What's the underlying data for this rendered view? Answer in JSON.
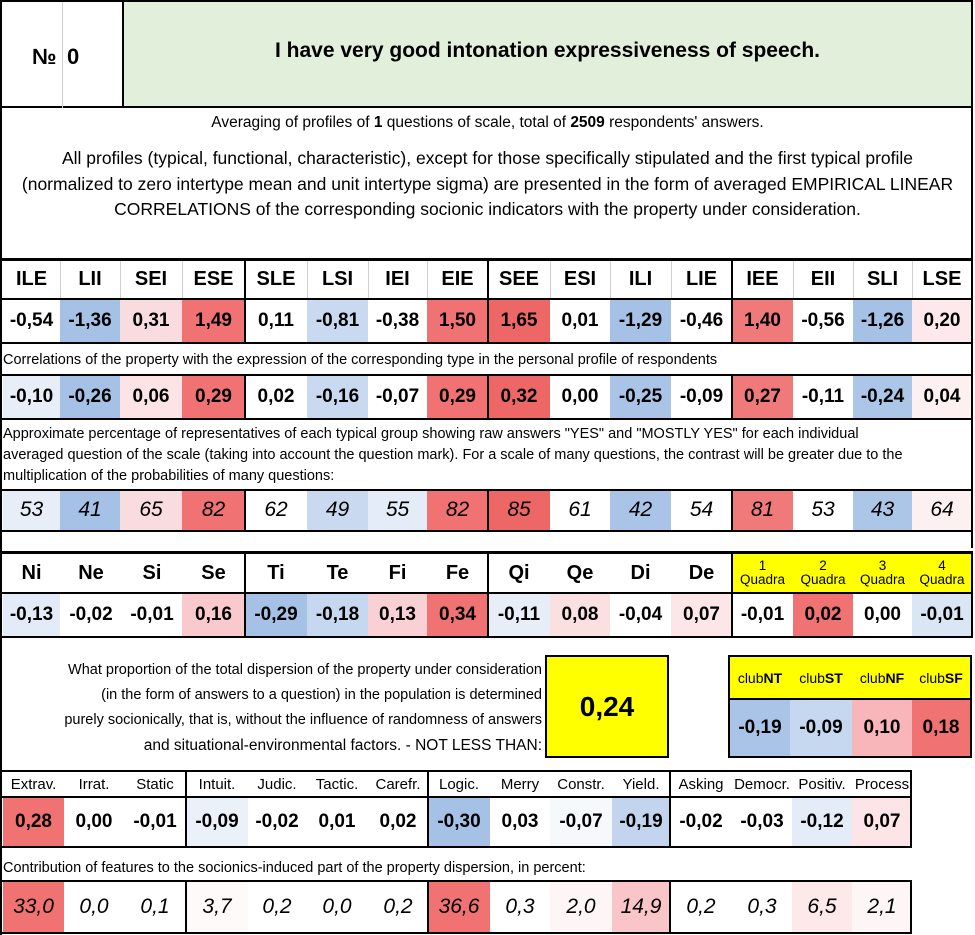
{
  "header": {
    "number_label": "№",
    "number_value": "0",
    "statement": "I have very good intonation expressiveness of speech."
  },
  "summary": {
    "part1": "Averaging of profiles of ",
    "num_questions": "1",
    "part2": " questions of scale, total of ",
    "num_answers": "2509",
    "part3": " respondents' answers."
  },
  "description": "All profiles (typical, functional, characteristic), except for those specifically stipulated and the first typical profile (normalized to zero intertype mean and unit intertype sigma) are presented in the form of averaged EMPIRICAL LINEAR CORRELATIONS of the corresponding socionic indicators with the property under consideration.",
  "types": {
    "headers": [
      "ILE",
      "LII",
      "SEI",
      "ESE",
      "SLE",
      "LSI",
      "IEI",
      "EIE",
      "SEE",
      "ESI",
      "ILI",
      "LIE",
      "IEE",
      "EII",
      "SLI",
      "LSE"
    ],
    "normalized": [
      "-0,54",
      "-1,36",
      "0,31",
      "1,49",
      "0,11",
      "-0,81",
      "-0,38",
      "1,50",
      "1,65",
      "0,01",
      "-1,29",
      "-0,46",
      "1,40",
      "-0,56",
      "-1,26",
      "0,20"
    ],
    "normalized_colors": [
      "#ffffff",
      "#a5c1e6",
      "#f9dcdf",
      "#f07272",
      "#ffffff",
      "#c9daf0",
      "#ffffff",
      "#f07272",
      "#ee6767",
      "#ffffff",
      "#a5c1e6",
      "#ffffff",
      "#f07a7a",
      "#ffffff",
      "#a5c1e6",
      "#fde9eb"
    ],
    "correlation_note": "Correlations of the property with the expression of the corresponding type in the personal profile of respondents",
    "correlations": [
      "-0,10",
      "-0,26",
      "0,06",
      "0,29",
      "0,02",
      "-0,16",
      "-0,07",
      "0,29",
      "0,32",
      "0,00",
      "-0,25",
      "-0,09",
      "0,27",
      "-0,11",
      "-0,24",
      "0,04"
    ],
    "correlation_colors": [
      "#e7eef8",
      "#a5c1e6",
      "#fce4e6",
      "#f07272",
      "#ffffff",
      "#c9daf0",
      "#ffffff",
      "#f07272",
      "#ee6767",
      "#ffffff",
      "#a9c4e7",
      "#ffffff",
      "#f07a7a",
      "#ffffff",
      "#acc6e8",
      "#fdf0f1"
    ],
    "percent_note_1": "Approximate percentage of representatives of each typical group showing raw answers \"YES\" and \"MOSTLY YES\" for each individual",
    "percent_note_2": "averaged question of the scale (taking into account the question mark). For a scale of many questions, the contrast will be greater due to the",
    "percent_note_3": "multiplication of the probabilities of many questions:",
    "percents": [
      "53",
      "41",
      "65",
      "82",
      "62",
      "49",
      "55",
      "82",
      "85",
      "61",
      "42",
      "54",
      "81",
      "53",
      "43",
      "64"
    ],
    "percent_colors": [
      "#e7eef8",
      "#a5c1e6",
      "#f9dcdf",
      "#f07272",
      "#ffffff",
      "#c9daf0",
      "#e4ecf7",
      "#f07272",
      "#ee6767",
      "#ffffff",
      "#a9c4e7",
      "#ffffff",
      "#f07a7a",
      "#ffffff",
      "#acc6e8",
      "#fdf0f1"
    ]
  },
  "functions": {
    "headers": [
      "Ni",
      "Ne",
      "Si",
      "Se",
      "Ti",
      "Te",
      "Fi",
      "Fe",
      "Qi",
      "Qe",
      "Di",
      "De"
    ],
    "values": [
      "-0,13",
      "-0,02",
      "-0,01",
      "0,16",
      "-0,29",
      "-0,18",
      "0,13",
      "0,34",
      "-0,11",
      "0,08",
      "-0,04",
      "0,07"
    ],
    "colors": [
      "#e2ebf7",
      "#ffffff",
      "#ffffff",
      "#f9c9cd",
      "#a5c1e6",
      "#c6d8ef",
      "#f9d1d4",
      "#f07272",
      "#e7eef8",
      "#fbe0e2",
      "#ffffff",
      "#fce6e8"
    ]
  },
  "quadras": {
    "numbers": [
      "1",
      "2",
      "3",
      "4"
    ],
    "label": "Quadra",
    "values": [
      "-0,01",
      "0,02",
      "0,00",
      "-0,01"
    ],
    "colors": [
      "#ffffff",
      "#f07272",
      "#ffffff",
      "#dbe6f5"
    ],
    "header_bg": "#ffff00"
  },
  "dispersion": {
    "line1": "What proportion of the total dispersion of the property under consideration",
    "line2": "(in the form of answers to a question) in the population is determined",
    "line3": "purely socionically, that is, without the influence of randomness of answers",
    "line4": "and situational-environmental factors. - NOT LESS THAN:",
    "value": "0,24"
  },
  "clubs": {
    "prefix": "club",
    "names": [
      "NT",
      "ST",
      "NF",
      "SF"
    ],
    "values": [
      "-0,19",
      "-0,09",
      "0,10",
      "0,18"
    ],
    "colors": [
      "#a9c4e7",
      "#c6d8ef",
      "#f8b5ba",
      "#f07272"
    ]
  },
  "features": {
    "headers": [
      "Extrav.",
      "Irrat.",
      "Static",
      "Intuit.",
      "Judic.",
      "Tactic.",
      "Carefr.",
      "Logic.",
      "Merry",
      "Constr.",
      "Yield.",
      "Asking",
      "Democr.",
      "Positiv.",
      "Process"
    ],
    "values": [
      "0,28",
      "0,00",
      "-0,01",
      "-0,09",
      "-0,02",
      "0,01",
      "0,02",
      "-0,30",
      "0,03",
      "-0,07",
      "-0,19",
      "-0,02",
      "-0,03",
      "-0,12",
      "0,07"
    ],
    "colors": [
      "#f07272",
      "#ffffff",
      "#ffffff",
      "#ebf1f9",
      "#ffffff",
      "#ffffff",
      "#ffffff",
      "#a5c1e6",
      "#ffffff",
      "#f6f9fc",
      "#c3d5ee",
      "#ffffff",
      "#ffffff",
      "#e4ecf7",
      "#fde5e7"
    ],
    "contribution_note": "Contribution of features to the socionics-induced part of the property dispersion, in percent:",
    "contributions": [
      "33,0",
      "0,0",
      "0,1",
      "3,7",
      "0,2",
      "0,0",
      "0,2",
      "36,6",
      "0,3",
      "2,0",
      "14,9",
      "0,2",
      "0,3",
      "6,5",
      "2,1"
    ],
    "contribution_colors": [
      "#f07272",
      "#ffffff",
      "#ffffff",
      "#fefafa",
      "#ffffff",
      "#ffffff",
      "#ffffff",
      "#f07272",
      "#ffffff",
      "#fef5f6",
      "#f9c5c9",
      "#ffffff",
      "#ffffff",
      "#fde8ea",
      "#fef6f6"
    ]
  }
}
